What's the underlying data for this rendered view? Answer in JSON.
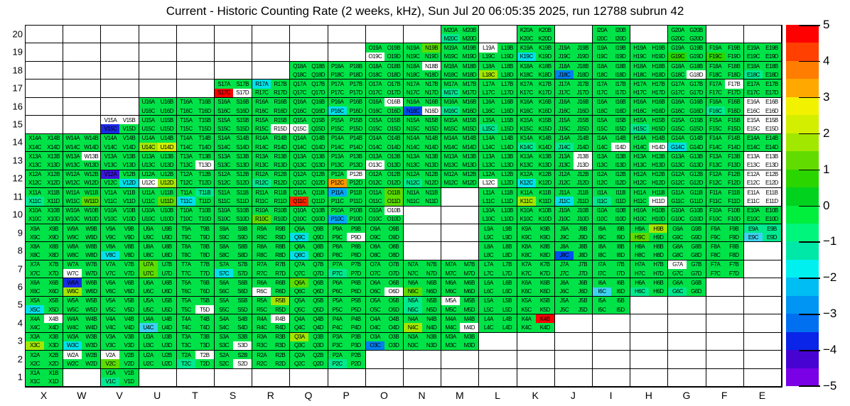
{
  "title": "Current - Historic Counting Rate (2 weeks, kHz), Sun Jul 20 06:05:35 2025, run 12788 subrun 42",
  "palette": {
    "g": "#00e348",
    "w": "#ffffff",
    "red": "#ff0000",
    "ro": "#ff2800",
    "or": "#ff9800",
    "yg": "#d4ee00",
    "lm3": "#c8ec00",
    "lm2": "#a4e600",
    "lm1": "#5cdc00",
    "lm0": "#2bd500",
    "tl": "#00e98e",
    "cy": "#00e2e8",
    "lcy": "#3cd2f0",
    "lb": "#00aaff",
    "db": "#0080f0",
    "b1": "#004df0",
    "b2": "#1b2ae6",
    "b3": "#3c14dc"
  },
  "grid": {
    "columns": [
      "X",
      "W",
      "V",
      "U",
      "T",
      "S",
      "R",
      "Q",
      "P",
      "O",
      "N",
      "M",
      "L",
      "K",
      "J",
      "I",
      "H",
      "G",
      "F",
      "E"
    ],
    "suffixes": [
      "A",
      "B",
      "C",
      "D"
    ],
    "rows_data": [
      {
        "row": 20,
        "cols": "M K I G",
        "special": {
          "M": "g,g,tl,g"
        }
      },
      {
        "row": 19,
        "cols": "O N M L K J I H G F E",
        "special": {
          "O": "g,g,w,g",
          "N": "g,lm1,g,g",
          "L": "w,g,g,g",
          "K": "g,g,cy,g",
          "G": "g,g,lm0,g",
          "F": "g,g,lm0,g"
        }
      },
      {
        "row": 18,
        "cols": "Q P O N M L K J I H G F E",
        "special": {
          "N": "g,w,g,g",
          "L": "g,g,lm2,g",
          "J": "g,g,db,g",
          "G": "g,g,g,w",
          "E": "g,g,tl,g"
        }
      },
      {
        "row": 17,
        "cols": "S R Q P O N M L K J I H G F E",
        "special": {
          "S": "g,g,red,w",
          "R": "cy,g,g,g",
          "M": "g,g,tl,g",
          "F": "g,w,g,g"
        }
      },
      {
        "row": 16,
        "cols": "U T S R Q P O N M L K J I H G F E",
        "special": {
          "P": "g,g,cy,g",
          "O": "g,w,g,g",
          "N": "g,g,b1,w",
          "M": "g,g,tl,g",
          "F": "g,g,tl,g",
          "E": "w,w,w,w"
        }
      },
      {
        "row": 15,
        "cols": "V U T S R Q P O N M L K J I H G F E",
        "special": {
          "V": "w,w,b2,g",
          "R": "g,g,g,w",
          "Q": "g,g,w,g",
          "L": "g,g,tl,g",
          "H": "g,g,tl,g",
          "E": "w,w,w,w"
        }
      },
      {
        "row": 14,
        "cols": "X W V U T S R Q P O N M L K J I H G F E",
        "special": {
          "U": "g,g,lm2,yg",
          "K": "g,g,tl,g",
          "J": "g,g,tl,g",
          "I": "g,g,g,w",
          "H": "g,g,g,w",
          "G": "g,g,cy,g"
        }
      },
      {
        "row": 13,
        "cols": "X W V U T S R Q P O N M L K J I H G F E",
        "special": {
          "W": "g,w,g,g",
          "T": "g,g,g,w",
          "O": "g,g,w,g",
          "J": "g,w,g,w",
          "E": "w,w,w,w"
        }
      },
      {
        "row": 12,
        "cols": "X W V U T S R Q P O N M L K J I H G F E",
        "special": {
          "V": "b3,g,g,cy",
          "U": "g,g,w,lm2",
          "R": "g,g,tl,g",
          "P": "g,w,or,g",
          "N": "g,g,tl,g",
          "L": "g,g,w,g",
          "K": "g,g,cy,g",
          "E": "w,w,w,w"
        }
      },
      {
        "row": 11,
        "cols": "X W V U T S R Q P O N L K J I H G F E",
        "special": {
          "X": "g,g,tl,g",
          "W": "g,g,g,lm1",
          "U": "g,g,g,lm1",
          "T": "g,tl,cy,g",
          "Q": "g,g,ro,g",
          "P": "lb,g,g,g",
          "O": "g,lm1,g,lm1",
          "K": "g,g,lm2,g",
          "J": "g,g,cy,g",
          "I": "g,g,tl,g",
          "H": "g,g,g,w",
          "E": "w,w,w,w"
        }
      },
      {
        "row": 10,
        "cols": "X W V U T S R Q P O L K J I H G F E",
        "special": {
          "R": "g,g,lm1,g",
          "P": "g,g,lb,g",
          "O": "g,w,g,g"
        }
      },
      {
        "row": 9,
        "cols": "X W V U T S R Q P O L K J I H G F E",
        "special": {
          "Q": "g,g,cy,g",
          "P": "g,g,g,w",
          "H": "g,lm2,lm1,g",
          "E": "tl,tl,lcy,tl"
        }
      },
      {
        "row": 8,
        "cols": "X W V U T S R Q P O L K J I H G F",
        "special": {
          "V": "g,g,cy,g",
          "Q": "g,g,cy,g",
          "J": "g,g,b1,g"
        }
      },
      {
        "row": 7,
        "cols": "X W V U T S R Q P O N M L K J I H G F",
        "special": {
          "W": "g,g,w,g",
          "U": "lm1,g,lm1,g",
          "S": "g,g,cy,g",
          "P": "g,g,tl,g",
          "G": "w,g,g,g"
        }
      },
      {
        "row": 6,
        "cols": "X W V U T S R Q P O N M L K J I H G",
        "special": {
          "W": "b2,g,lm2,g",
          "R": "g,g,w,g",
          "Q": "lm1,g,g,g",
          "O": "g,g,g,w",
          "N": "g,g,lm1,g",
          "I": "g,g,lcy,g",
          "H": "g,g,tl,g",
          "G": "g,g,tl,g"
        }
      },
      {
        "row": 5,
        "cols": "X W V U T S R Q P O N M L K J I",
        "special": {
          "X": "g,g,cy,g",
          "T": "g,g,g,w",
          "R": "g,lm2,g,g",
          "N": "tl,g,tl,g",
          "M": "w,g,g,g"
        }
      },
      {
        "row": 4,
        "cols": "X W V U T S R Q P O N M L K",
        "special": {
          "X": "g,w,g,g",
          "U": "g,g,lcy,g",
          "R": "g,w,g,g",
          "N": "g,g,lm2,g",
          "M": "g,g,g,w",
          "K": "g,red,g,g"
        }
      },
      {
        "row": 3,
        "cols": "X W V U T S R Q P O N M",
        "special": {
          "X": "g,g,lm2,g",
          "W": "g,g,cy,g",
          "S": "g,g,g,w",
          "Q": "lm2,g,g,g",
          "O": "g,g,db,g"
        }
      },
      {
        "row": 2,
        "cols": "X W V U T S R Q P",
        "special": {
          "W": "w,g,g,g",
          "V": "w,g,lm1,g",
          "T": "g,w,tl,g",
          "S": "g,g,g,w",
          "P": "g,g,tl,g"
        }
      },
      {
        "row": 1,
        "cols": "X V",
        "special": {
          "V": "g,g,tl,g"
        }
      }
    ]
  },
  "colorbar": {
    "segments": [
      "#ff0000",
      "#ff4000",
      "#ff7d00",
      "#ffa800",
      "#f2f200",
      "#d4ee00",
      "#a2e700",
      "#62dc00",
      "#2bd500",
      "#00d21e",
      "#00ee3c",
      "#00f57d",
      "#00e8a8",
      "#00f0f0",
      "#00bdf2",
      "#0095f2",
      "#0070f0",
      "#0a24e8",
      "#4603d2",
      "#7a00e6"
    ],
    "tick_labels": [
      "5",
      "4",
      "3",
      "2",
      "1",
      "0",
      "−1",
      "−2",
      "−3",
      "−4",
      "−5"
    ],
    "min": -5,
    "max": 5
  },
  "chart_data": {
    "type": "heatmap",
    "title": "Current - Historic Counting Rate (2 weeks, kHz), Sun Jul 20 06:05:35 2025, run 12788 subrun 42",
    "xlabel": "",
    "ylabel": "",
    "x_categories": [
      "X",
      "W",
      "V",
      "U",
      "T",
      "S",
      "R",
      "Q",
      "P",
      "O",
      "N",
      "M",
      "L",
      "K",
      "J",
      "I",
      "H",
      "G",
      "F",
      "E"
    ],
    "y_categories": [
      20,
      19,
      18,
      17,
      16,
      15,
      14,
      13,
      12,
      11,
      10,
      9,
      8,
      7,
      6,
      5,
      4,
      3,
      2,
      1
    ],
    "value_range": [
      -5,
      5
    ],
    "legend_position": "right",
    "notable_values": {
      "S17C": 5,
      "Q11C": 4.7,
      "K4B": 5,
      "P12C": 3.2,
      "U14D": 2.4,
      "U12D": 2.1,
      "L18C": 2,
      "U14C": 2,
      "K11C": 2,
      "H9B": 2,
      "R5B": 2,
      "W6C": 2,
      "N4C": 2,
      "Q3A": 2,
      "X3C": 2,
      "R17A": -1.7,
      "P16C": -1.7,
      "V12D": -1.7,
      "K12C": -1.7,
      "T11C": -1.7,
      "J11C": -1.7,
      "Q9C": -1.7,
      "Q8C": -1.7,
      "V8C": -1.7,
      "S7C": -1.7,
      "X5C": -1.7,
      "W3C": -1.7,
      "G14C": -1.7,
      "K19C": -1.7,
      "E9C": -2.2,
      "I6C": -2.2,
      "U4C": -2.2,
      "P11A": -2.4,
      "P10C": -2.4,
      "J18C": -2.7,
      "O3C": -2.7,
      "J8C": -3.2,
      "N16C": -3.2,
      "V15C": -3.8,
      "W6A": -3.8,
      "V12A": -4.2,
      "default_green": 0,
      "white_cells": "no data"
    }
  }
}
